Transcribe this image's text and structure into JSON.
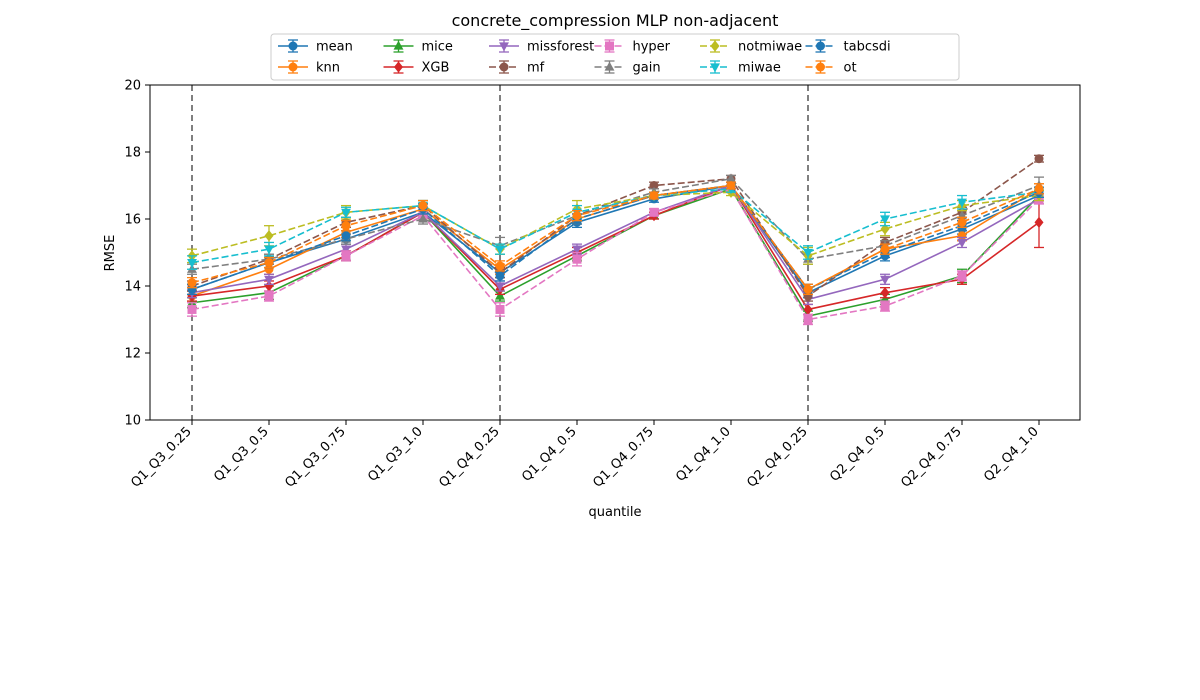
{
  "chart_data": {
    "type": "line",
    "title": "concrete_compression MLP non-adjacent",
    "xlabel": "quantile",
    "ylabel": "RMSE",
    "ylim": [
      10,
      20
    ],
    "yticks": [
      10,
      12,
      14,
      16,
      18,
      20
    ],
    "grid": false,
    "legend_position": "top-center",
    "categories": [
      "Q1_Q3_0.25",
      "Q1_Q3_0.5",
      "Q1_Q3_0.75",
      "Q1_Q3_1.0",
      "Q1_Q4_0.25",
      "Q1_Q4_0.5",
      "Q1_Q4_0.75",
      "Q1_Q4_1.0",
      "Q2_Q4_0.25",
      "Q2_Q4_0.5",
      "Q2_Q4_0.75",
      "Q2_Q4_1.0"
    ],
    "vlines_at": [
      "Q1_Q3_0.25",
      "Q1_Q4_0.25",
      "Q2_Q4_0.25"
    ],
    "series": [
      {
        "name": "mean",
        "color": "#1f77b4",
        "dash": "solid",
        "marker": "circle",
        "values": [
          13.9,
          14.7,
          15.4,
          16.2,
          14.4,
          15.9,
          16.6,
          17.0,
          13.8,
          14.9,
          15.7,
          16.7
        ],
        "errors": [
          0.15,
          0.15,
          0.15,
          0.15,
          0.15,
          0.15,
          0.1,
          0.1,
          0.15,
          0.15,
          0.15,
          0.15
        ]
      },
      {
        "name": "knn",
        "color": "#ff7f0e",
        "dash": "solid",
        "marker": "circle",
        "values": [
          13.7,
          14.5,
          15.6,
          16.3,
          14.5,
          16.0,
          16.7,
          17.0,
          13.9,
          15.1,
          15.5,
          16.9
        ],
        "errors": [
          0.15,
          0.15,
          0.15,
          0.15,
          0.15,
          0.15,
          0.1,
          0.1,
          0.15,
          0.15,
          0.15,
          0.15
        ]
      },
      {
        "name": "mice",
        "color": "#2ca02c",
        "dash": "solid",
        "marker": "triangle",
        "values": [
          13.5,
          13.8,
          14.9,
          16.2,
          13.7,
          14.9,
          16.1,
          16.9,
          13.1,
          13.6,
          14.3,
          16.7
        ],
        "errors": [
          0.15,
          0.2,
          0.15,
          0.15,
          0.15,
          0.15,
          0.1,
          0.1,
          0.15,
          0.15,
          0.2,
          0.15
        ]
      },
      {
        "name": "XGB",
        "color": "#d62728",
        "dash": "solid",
        "marker": "diamond",
        "values": [
          13.7,
          14.0,
          14.9,
          16.2,
          13.9,
          15.0,
          16.1,
          17.0,
          13.3,
          13.8,
          14.2,
          15.9
        ],
        "errors": [
          0.15,
          0.15,
          0.15,
          0.15,
          0.15,
          0.15,
          0.1,
          0.1,
          0.15,
          0.15,
          0.15,
          0.75
        ]
      },
      {
        "name": "missforest",
        "color": "#9467bd",
        "dash": "solid",
        "marker": "triangle-down",
        "values": [
          13.8,
          14.2,
          15.1,
          16.2,
          14.0,
          15.1,
          16.2,
          17.0,
          13.6,
          14.2,
          15.3,
          16.6
        ],
        "errors": [
          0.15,
          0.15,
          0.15,
          0.15,
          0.15,
          0.15,
          0.1,
          0.1,
          0.15,
          0.15,
          0.15,
          0.15
        ]
      },
      {
        "name": "mf",
        "color": "#8c564b",
        "dash": "dashed",
        "marker": "circle",
        "values": [
          14.0,
          14.8,
          15.9,
          16.4,
          14.4,
          16.1,
          17.0,
          17.2,
          13.7,
          15.3,
          16.2,
          17.8
        ],
        "errors": [
          0.15,
          0.15,
          0.15,
          0.15,
          0.15,
          0.15,
          0.1,
          0.1,
          0.15,
          0.15,
          0.15,
          0.1
        ]
      },
      {
        "name": "hyper",
        "color": "#e377c2",
        "dash": "dashed",
        "marker": "square",
        "values": [
          13.3,
          13.7,
          14.9,
          16.1,
          13.3,
          14.8,
          16.2,
          16.9,
          13.0,
          13.4,
          14.3,
          16.6
        ],
        "errors": [
          0.2,
          0.15,
          0.15,
          0.15,
          0.2,
          0.2,
          0.1,
          0.1,
          0.15,
          0.15,
          0.15,
          0.15
        ]
      },
      {
        "name": "gain",
        "color": "#7f7f7f",
        "dash": "dashed",
        "marker": "triangle",
        "values": [
          14.5,
          14.8,
          15.4,
          16.0,
          15.2,
          16.1,
          16.8,
          17.2,
          14.8,
          15.2,
          16.1,
          17.0
        ],
        "errors": [
          0.15,
          0.15,
          0.15,
          0.15,
          0.25,
          0.15,
          0.1,
          0.1,
          0.15,
          0.15,
          0.15,
          0.25
        ]
      },
      {
        "name": "notmiwae",
        "color": "#bcbd22",
        "dash": "dashed",
        "marker": "diamond",
        "values": [
          14.9,
          15.5,
          16.2,
          16.4,
          15.1,
          16.3,
          16.7,
          16.8,
          14.9,
          15.7,
          16.4,
          16.7
        ],
        "errors": [
          0.2,
          0.3,
          0.2,
          0.15,
          0.15,
          0.25,
          0.1,
          0.1,
          0.25,
          0.2,
          0.15,
          0.15
        ]
      },
      {
        "name": "miwae",
        "color": "#17becf",
        "dash": "dashed",
        "marker": "triangle-down",
        "values": [
          14.7,
          15.1,
          16.2,
          16.4,
          15.1,
          16.2,
          16.7,
          16.9,
          15.0,
          16.0,
          16.5,
          16.8
        ],
        "errors": [
          0.2,
          0.2,
          0.15,
          0.15,
          0.15,
          0.2,
          0.1,
          0.1,
          0.2,
          0.2,
          0.2,
          0.15
        ]
      },
      {
        "name": "tabcsdi",
        "color": "#1f77b4",
        "dash": "dashed",
        "marker": "circle",
        "values": [
          13.9,
          14.7,
          15.5,
          16.3,
          14.3,
          16.0,
          16.7,
          17.0,
          13.9,
          15.0,
          15.8,
          16.8
        ],
        "errors": [
          0.15,
          0.15,
          0.15,
          0.15,
          0.15,
          0.15,
          0.1,
          0.1,
          0.15,
          0.15,
          0.15,
          0.15
        ]
      },
      {
        "name": "ot",
        "color": "#ff7f0e",
        "dash": "dashed",
        "marker": "circle",
        "values": [
          14.1,
          14.7,
          15.8,
          16.4,
          14.6,
          16.1,
          16.7,
          17.0,
          13.9,
          15.1,
          15.9,
          16.9
        ],
        "errors": [
          0.15,
          0.15,
          0.15,
          0.15,
          0.15,
          0.15,
          0.1,
          0.1,
          0.15,
          0.15,
          0.15,
          0.15
        ]
      }
    ]
  }
}
